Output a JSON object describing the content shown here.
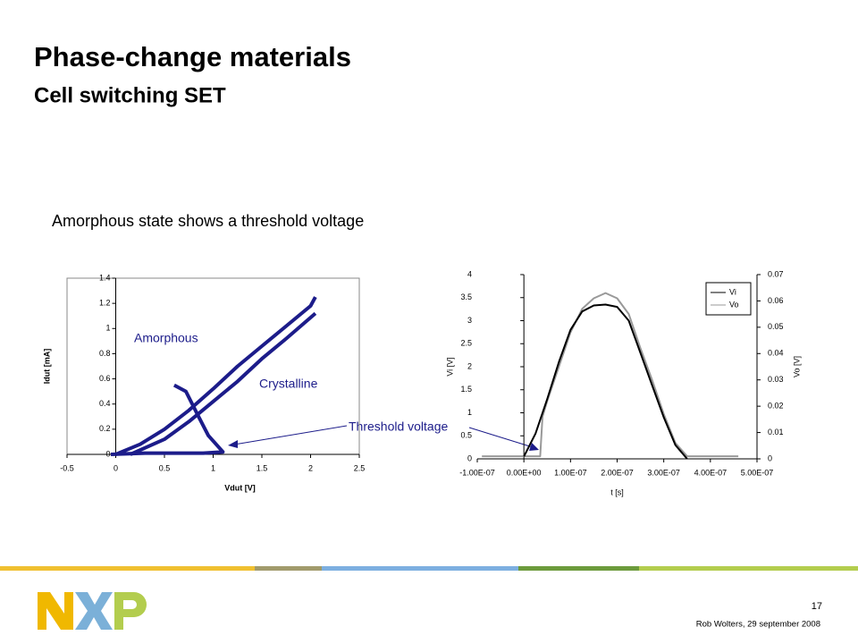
{
  "slide": {
    "title": "Phase-change materials",
    "subtitle": "Cell switching SET",
    "body": "Amorphous state shows a threshold voltage",
    "annotation": "Threshold voltage",
    "page_number": "17",
    "footer": "Rob Wolters, 29 september 2008"
  },
  "chart_data": [
    {
      "type": "line",
      "xlabel": "Vdut [V]",
      "ylabel": "Idut [mA]",
      "annotations": [
        "Amorphous",
        "Crystalline"
      ],
      "xlim": [
        -0.5,
        2.5
      ],
      "xticks": [
        -0.5,
        0,
        0.5,
        1,
        1.5,
        2,
        2.5
      ],
      "ylim": [
        0,
        1.4
      ],
      "yticks": [
        0,
        0.2,
        0.4,
        0.6,
        0.8,
        1,
        1.2,
        1.4
      ],
      "color": "#1c1c8a",
      "series": [
        {
          "x": [
            -0.05,
            0.3,
            0.6,
            0.9,
            1.1,
            0.95,
            0.85,
            0.72,
            0.6
          ],
          "values": [
            0,
            0.01,
            0.01,
            0.01,
            0.02,
            0.15,
            0.3,
            0.5,
            0.55
          ]
        },
        {
          "x": [
            0,
            0.25,
            0.5,
            0.75,
            1,
            1.25,
            1.5,
            1.75,
            2,
            2.05
          ],
          "values": [
            0,
            0.08,
            0.2,
            0.35,
            0.52,
            0.7,
            0.86,
            1.02,
            1.18,
            1.25
          ]
        },
        {
          "x": [
            0.15,
            0.5,
            0.75,
            1,
            1.25,
            1.5,
            1.75,
            2.05
          ],
          "values": [
            0,
            0.12,
            0.26,
            0.42,
            0.58,
            0.76,
            0.92,
            1.12
          ]
        }
      ]
    },
    {
      "type": "line",
      "xlabel": "t [s]",
      "ylabel": "Vi [V]",
      "y2label": "Vo [V]",
      "legend": "top-right",
      "xlim": [
        -1e-07,
        5e-07
      ],
      "xticks": [
        {
          "value": -1e-07,
          "label": "-1.00E-07"
        },
        {
          "value": 0,
          "label": "0.00E+00"
        },
        {
          "value": 1e-07,
          "label": "1.00E-07"
        },
        {
          "value": 2e-07,
          "label": "2.00E-07"
        },
        {
          "value": 3e-07,
          "label": "3.00E-07"
        },
        {
          "value": 4e-07,
          "label": "4.00E-07"
        },
        {
          "value": 5e-07,
          "label": "5.00E-07"
        }
      ],
      "ylim": [
        0,
        4
      ],
      "yticks": [
        0,
        0.5,
        1,
        1.5,
        2,
        2.5,
        3,
        3.5,
        4
      ],
      "y2lim": [
        0,
        0.07
      ],
      "y2ticks": [
        0,
        0.01,
        0.02,
        0.03,
        0.04,
        0.05,
        0.06,
        0.07
      ],
      "series": [
        {
          "name": "Vo",
          "color": "#999999",
          "axis": "y2",
          "x": [
            -9e-08,
            3.5e-08,
            4e-08,
            5e-08,
            7.5e-08,
            1e-07,
            1.25e-07,
            1.5e-07,
            1.75e-07,
            2e-07,
            2.25e-07,
            2.5e-07,
            2.75e-07,
            3e-07,
            3.25e-07,
            3.5e-07,
            4e-07,
            4.6e-07
          ],
          "values": [
            0.001,
            0.001,
            0.016,
            0.022,
            0.035,
            0.048,
            0.057,
            0.061,
            0.063,
            0.061,
            0.055,
            0.042,
            0.03,
            0.017,
            0.006,
            0.001,
            0.001,
            0.001
          ]
        },
        {
          "name": "Vi",
          "color": "#000000",
          "x": [
            0,
            2.5e-08,
            5e-08,
            7.5e-08,
            1e-07,
            1.25e-07,
            1.5e-07,
            1.75e-07,
            2e-07,
            2.25e-07,
            2.5e-07,
            2.75e-07,
            3e-07,
            3.25e-07,
            3.5e-07
          ],
          "values": [
            0.05,
            0.55,
            1.3,
            2.1,
            2.8,
            3.2,
            3.33,
            3.35,
            3.3,
            3.0,
            2.3,
            1.6,
            0.9,
            0.3,
            0
          ]
        }
      ]
    }
  ]
}
